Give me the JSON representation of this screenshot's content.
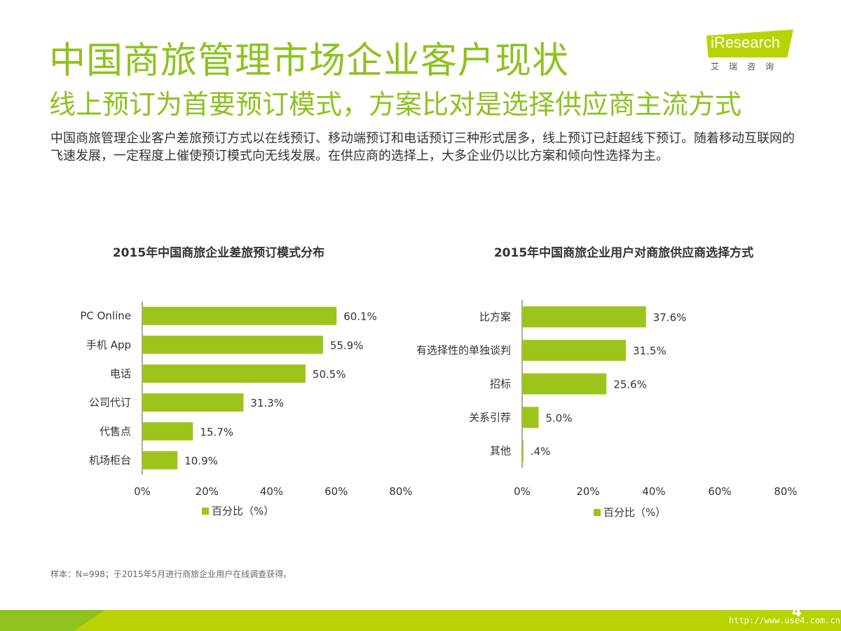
{
  "header": {
    "title": "中国商旅管理市场企业客户现状",
    "subtitle": "线上预订为首要预订模式，方案比对是选择供应商主流方式",
    "summary": "中国商旅管理企业客户差旅预订方式以在线预订、移动端预订和电话预订三种形式居多，线上预订已赶超线下预订。随着移动互联网的飞速发展，一定程度上催使预订模式向无线发展。在供应商的选择上，大多企业仍以比方案和倾向性选择为主。"
  },
  "logo": {
    "text": "iResearch",
    "sub": "艾瑞咨询"
  },
  "chart_data": [
    {
      "type": "bar",
      "orientation": "horizontal",
      "title": "2015年中国商旅企业差旅预订模式分布",
      "categories": [
        "PC Online",
        "手机 App",
        "电话",
        "公司代订",
        "代售点",
        "机场柜台"
      ],
      "series": [
        {
          "name": "百分比（%）",
          "values": [
            60.1,
            55.9,
            50.5,
            31.3,
            15.7,
            10.9
          ],
          "labels": [
            "60.1%",
            "55.9%",
            "50.5%",
            "31.3%",
            "15.7%",
            "10.9%"
          ]
        }
      ],
      "xlim": [
        0,
        80
      ],
      "xticks": [
        "0%",
        "20%",
        "40%",
        "60%",
        "80%"
      ],
      "legend": "bottom",
      "grid": false,
      "color": "#9dc41a"
    },
    {
      "type": "bar",
      "orientation": "horizontal",
      "title": "2015年中国商旅企业用户对商旅供应商选择方式",
      "categories": [
        "比方案",
        "有选择性的单独谈判",
        "招标",
        "关系引荐",
        "其他"
      ],
      "series": [
        {
          "name": "百分比（%）",
          "values": [
            37.6,
            31.5,
            25.6,
            5.0,
            0.4
          ],
          "labels": [
            "37.6%",
            "31.5%",
            "25.6%",
            "5.0%",
            ".4%"
          ]
        }
      ],
      "xlim": [
        0,
        80
      ],
      "xticks": [
        "0%",
        "20%",
        "40%",
        "60%",
        "80%"
      ],
      "legend": "bottom",
      "grid": false,
      "color": "#9dc41a"
    }
  ],
  "footnote": "样本：N=998；于2015年5月进行商旅企业用户在线调查获得。",
  "page_number": "4",
  "watermark": "http://www.use4.com.cn"
}
